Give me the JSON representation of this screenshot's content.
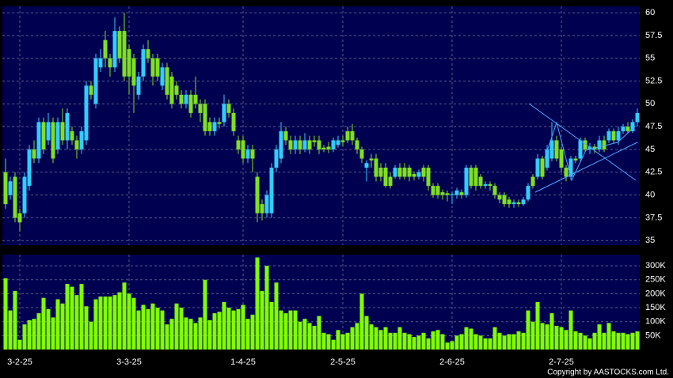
{
  "chart_data": {
    "type": "candlestick",
    "copyright": "Copyright by AASTOCKS.com Ltd.",
    "up_color": "#33ccff",
    "down_color": "#80e020",
    "volume_color": "#80ff00",
    "grid": true,
    "categories": [
      null,
      null,
      null,
      "3-2-25",
      null,
      null,
      null,
      null,
      null,
      null,
      null,
      null,
      null,
      null,
      null,
      null,
      null,
      null,
      null,
      null,
      null,
      null,
      null,
      null,
      null,
      null,
      "3-3-25",
      null,
      null,
      null,
      null,
      null,
      null,
      null,
      null,
      null,
      null,
      null,
      null,
      null,
      null,
      null,
      null,
      null,
      null,
      null,
      null,
      null,
      null,
      null,
      "1-4-25",
      null,
      null,
      null,
      null,
      null,
      null,
      null,
      null,
      null,
      null,
      null,
      null,
      null,
      null,
      null,
      null,
      null,
      null,
      null,
      null,
      "2-5-25",
      null,
      null,
      null,
      null,
      null,
      null,
      null,
      null,
      null,
      null,
      null,
      null,
      null,
      null,
      null,
      null,
      null,
      null,
      null,
      null,
      null,
      null,
      "2-6-25",
      null,
      null,
      null,
      null,
      null,
      null,
      null,
      null,
      null,
      null,
      null,
      null,
      null,
      null,
      null,
      null,
      null,
      null,
      null,
      null,
      null,
      null,
      "2-7-25",
      null,
      null,
      null,
      null,
      null,
      null,
      null,
      null,
      null,
      null,
      null,
      null,
      null,
      null,
      null,
      null
    ],
    "open": [
      42.5,
      40,
      42,
      38,
      38,
      41,
      45,
      44,
      48,
      46,
      48,
      45,
      48,
      46,
      47,
      46,
      45,
      46,
      52,
      50,
      54,
      57,
      55,
      54,
      58,
      58,
      56,
      55,
      51,
      53,
      56,
      55,
      55,
      52,
      54,
      53,
      52,
      51,
      50,
      51,
      51,
      50,
      50,
      48,
      47,
      48,
      48,
      50,
      49,
      46,
      46,
      44,
      45,
      42,
      39,
      38,
      38,
      43,
      44,
      47,
      46,
      45,
      46,
      45,
      46,
      46,
      46,
      45.2,
      45.3,
      45,
      45.5,
      46,
      47,
      47,
      46,
      45,
      43,
      44,
      44,
      43,
      43,
      42,
      42,
      43,
      43,
      43,
      42.3,
      42,
      43,
      43,
      41,
      41,
      40.3,
      40.2,
      40,
      40,
      40.3,
      40,
      43,
      43,
      42,
      41,
      41.2,
      41,
      40,
      40,
      39.5,
      39,
      39.2,
      39,
      39.5,
      42,
      42,
      44,
      43,
      44,
      46,
      45,
      43,
      42,
      44,
      44,
      46,
      45,
      45.3,
      45,
      46,
      46,
      47,
      46,
      47,
      47.5,
      47,
      48
    ],
    "high": [
      44,
      42,
      42.5,
      38.5,
      42.5,
      45.5,
      46,
      48.5,
      48.5,
      49,
      48.5,
      48.5,
      49.5,
      49.5,
      47.5,
      46.5,
      47.5,
      52.5,
      52.5,
      55.5,
      56,
      58,
      55.5,
      59.5,
      58.5,
      60,
      56.5,
      55.5,
      53.5,
      56.5,
      57,
      55.5,
      55.5,
      54.5,
      54.5,
      53.5,
      52.5,
      51.5,
      51.5,
      51.5,
      53,
      50.5,
      50.5,
      48.5,
      48.5,
      48.5,
      51,
      50.5,
      49.5,
      46.5,
      46.5,
      45.5,
      45.5,
      42.5,
      39.5,
      40.5,
      43.5,
      45.5,
      48,
      47.5,
      46.5,
      46.5,
      46.5,
      46.8,
      46.5,
      46.5,
      46.5,
      45.5,
      45.8,
      46.3,
      46.5,
      46.5,
      47.5,
      47.8,
      46.3,
      45.3,
      43.8,
      44.5,
      44.5,
      43.5,
      43.5,
      42.5,
      43.3,
      43.5,
      43.5,
      43.3,
      42.6,
      42.8,
      43.3,
      43.3,
      41.3,
      41.3,
      40.6,
      40.5,
      40.4,
      40.8,
      40.6,
      43.3,
      43.3,
      43.3,
      42.3,
      41.5,
      41.5,
      41.3,
      40.3,
      40.3,
      39.8,
      39.5,
      39.5,
      39.8,
      41.3,
      42.3,
      44.5,
      44.3,
      45.5,
      48,
      46.5,
      45.3,
      43.3,
      44.3,
      44.3,
      46.3,
      46.3,
      45.7,
      45.6,
      46.5,
      46.5,
      47.3,
      47.3,
      47.5,
      47.8,
      48,
      48.3,
      49.5
    ],
    "low": [
      38.5,
      39.5,
      37,
      36,
      37.5,
      40.5,
      43.5,
      43.5,
      44.5,
      45.5,
      43.5,
      44.5,
      45.5,
      45,
      45.5,
      44,
      44.5,
      45.5,
      50.5,
      49.5,
      53.5,
      54,
      53,
      53.5,
      54.5,
      52.5,
      51,
      49,
      50.5,
      52.5,
      54.5,
      52,
      52.5,
      51.5,
      50.5,
      49.5,
      50.5,
      49.5,
      49.5,
      48.5,
      49.5,
      48,
      46.5,
      46.5,
      46.5,
      47.3,
      47.5,
      48.5,
      46.5,
      44.5,
      43.5,
      43.5,
      42.5,
      37,
      37.2,
      37.5,
      37.5,
      42.5,
      43.5,
      45.5,
      44.5,
      44.5,
      44.5,
      44.7,
      44.5,
      45.3,
      44.5,
      44.7,
      44.6,
      44.7,
      45.2,
      45.3,
      45.7,
      45.5,
      44.5,
      43.5,
      41.5,
      43,
      41.5,
      41.5,
      40.8,
      40.7,
      41.8,
      41.7,
      41.7,
      41.5,
      41.6,
      41.7,
      41.5,
      40.5,
      39.7,
      39.6,
      39.5,
      39.3,
      39,
      39.6,
      39.6,
      39.7,
      40.7,
      40.5,
      40.7,
      40.7,
      40.5,
      39.6,
      39.1,
      38.7,
      38.6,
      38.6,
      38.7,
      38.8,
      39.3,
      40.7,
      41.7,
      41.7,
      42.7,
      43.7,
      43.7,
      42.5,
      41.5,
      41.7,
      43.5,
      43.7,
      44.7,
      44.5,
      44.6,
      44.7,
      44.7,
      45.7,
      45.7,
      45.5,
      46.7,
      46.8,
      46.8,
      47.5
    ],
    "close": [
      39,
      41.5,
      37.5,
      37,
      42,
      45,
      44,
      48,
      45,
      48,
      44,
      48,
      46,
      49,
      46,
      45,
      47,
      52,
      51,
      55,
      55,
      55,
      54,
      58,
      55,
      53,
      53,
      52,
      53,
      56,
      55,
      53,
      53,
      54,
      51,
      50,
      51,
      50,
      51,
      49,
      50,
      49,
      47,
      47,
      48,
      47.8,
      50,
      49,
      47,
      45,
      44,
      45,
      44,
      38,
      38,
      40,
      43,
      45,
      47,
      46,
      45,
      46,
      45,
      46,
      45,
      45.8,
      45,
      45,
      45,
      46,
      46,
      45.8,
      46,
      46,
      45,
      44,
      43.5,
      43.8,
      42,
      42,
      41,
      41,
      43,
      42,
      42,
      42,
      42,
      42.5,
      42,
      41,
      40,
      40,
      40,
      40,
      40.1,
      40.5,
      40,
      43,
      41,
      41,
      41,
      41.2,
      41,
      40,
      39.5,
      39,
      39,
      39.2,
      39,
      39.5,
      41,
      41,
      44,
      42,
      45,
      46,
      44,
      43,
      42,
      44,
      43.8,
      46,
      45,
      45.3,
      45,
      46,
      45,
      47,
      46,
      47,
      47.5,
      47,
      48,
      49
    ],
    "volume": [
      255000,
      140000,
      210000,
      35000,
      90000,
      105000,
      110000,
      130000,
      185000,
      145000,
      115000,
      180000,
      165000,
      235000,
      225000,
      195000,
      235000,
      155000,
      100000,
      180000,
      190000,
      190000,
      190000,
      195000,
      205000,
      240000,
      200000,
      185000,
      140000,
      160000,
      145000,
      165000,
      150000,
      140000,
      90000,
      110000,
      165000,
      150000,
      115000,
      110000,
      95000,
      115000,
      250000,
      105000,
      130000,
      135000,
      170000,
      150000,
      140000,
      145000,
      160000,
      110000,
      125000,
      330000,
      210000,
      300000,
      170000,
      240000,
      140000,
      130000,
      140000,
      140000,
      100000,
      110000,
      95000,
      85000,
      120000,
      60000,
      55000,
      35000,
      70000,
      55000,
      60000,
      80000,
      95000,
      200000,
      120000,
      90000,
      80000,
      70000,
      80000,
      60000,
      60000,
      80000,
      60000,
      55000,
      45000,
      50000,
      60000,
      40000,
      65000,
      70000,
      55000,
      25000,
      30000,
      50000,
      55000,
      80000,
      75000,
      55000,
      50000,
      40000,
      40000,
      80000,
      60000,
      50000,
      55000,
      55000,
      65000,
      60000,
      140000,
      100000,
      170000,
      95000,
      90000,
      130000,
      85000,
      80000,
      70000,
      140000,
      65000,
      60000,
      50000,
      40000,
      60000,
      90000,
      60000,
      95000,
      65000,
      60000,
      60000,
      55000,
      60000,
      65000
    ],
    "ylim": [
      34.5,
      60.7
    ],
    "yticks": [
      35,
      {
        "value": 37.5,
        "label": "37.5"
      },
      40,
      {
        "value": 42.5,
        "label": "42.5"
      },
      45,
      {
        "value": 47.5,
        "label": "47.5"
      },
      50,
      {
        "value": 52.5,
        "label": "52.5"
      },
      55,
      {
        "value": 57.5,
        "label": "57.5"
      },
      60
    ],
    "volume_ylim": [
      0,
      340000
    ],
    "volume_yticks": [
      {
        "value": 50000,
        "label": "50K"
      },
      {
        "value": 100000,
        "label": "100K"
      },
      {
        "value": 150000,
        "label": "150K"
      },
      {
        "value": 200000,
        "label": "200K"
      },
      {
        "value": 250000,
        "label": "250K"
      },
      {
        "value": 300000,
        "label": "300K"
      }
    ]
  }
}
